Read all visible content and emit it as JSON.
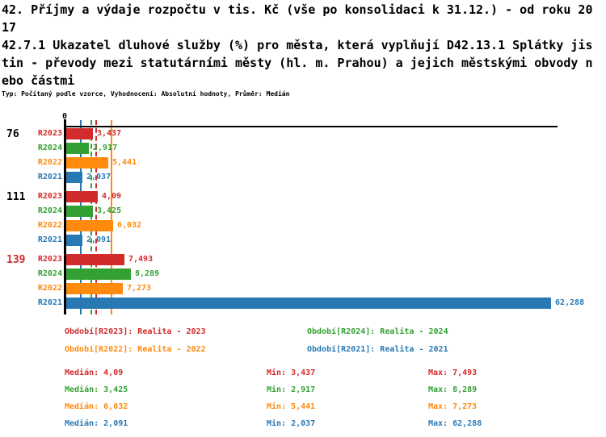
{
  "title": {
    "lines": [
      "42. Příjmy a výdaje rozpočtu v tis. Kč (vše po konsolidaci k 31.12.) - od roku 20",
      "17",
      "42.7.1 Ukazatel dluhové služby (%) pro města, která vyplňují D42.13.1 Splátky jis",
      "tin - převody mezi statutárními městy (hl. m. Prahou) a jejich městskými obvody n",
      "ebo částmi"
    ],
    "meta": "Typ: Počítaný podle vzorce, Vyhodnocení: Absolutní hodnoty, Průměr: Medián"
  },
  "colors": {
    "R2023": "#d22b2b",
    "R2024": "#33a033",
    "R2022": "#ff8a0e",
    "R2021": "#2878b4",
    "axis": "#000000",
    "highlight_group_label": "#d22b2b",
    "normal_group_label": "#000000",
    "background": "#ffffff"
  },
  "chart_data": {
    "type": "bar",
    "orientation": "horizontal",
    "axis_zero_label": "0",
    "xlim": [
      0,
      63.3
    ],
    "grid": false,
    "legend_position": "bottom",
    "series_order": [
      "R2023",
      "R2024",
      "R2022",
      "R2021"
    ],
    "groups": [
      {
        "label": "76",
        "label_color": "#000000",
        "bars": [
          {
            "series": "R2023",
            "value": 3.437,
            "display": "3,437"
          },
          {
            "series": "R2024",
            "value": 2.917,
            "display": "2,917"
          },
          {
            "series": "R2022",
            "value": 5.441,
            "display": "5,441"
          },
          {
            "series": "R2021",
            "value": 2.037,
            "display": "2,037"
          }
        ]
      },
      {
        "label": "111",
        "label_color": "#000000",
        "bars": [
          {
            "series": "R2023",
            "value": 4.09,
            "display": "4,09"
          },
          {
            "series": "R2024",
            "value": 3.425,
            "display": "3,425"
          },
          {
            "series": "R2022",
            "value": 6.032,
            "display": "6,032"
          },
          {
            "series": "R2021",
            "value": 2.091,
            "display": "2,091"
          }
        ]
      },
      {
        "label": "139",
        "label_color": "#d22b2b",
        "bars": [
          {
            "series": "R2023",
            "value": 7.493,
            "display": "7,493"
          },
          {
            "series": "R2024",
            "value": 8.289,
            "display": "8,289"
          },
          {
            "series": "R2022",
            "value": 7.273,
            "display": "7,273"
          },
          {
            "series": "R2021",
            "value": 62.288,
            "display": "62,288"
          }
        ]
      }
    ],
    "median_lines": [
      {
        "series": "R2023",
        "value": 4.09,
        "style": "dashed"
      },
      {
        "series": "R2024",
        "value": 3.425,
        "style": "dashed"
      },
      {
        "series": "R2022",
        "value": 6.032,
        "style": "solid"
      },
      {
        "series": "R2021",
        "value": 2.091,
        "style": "solid"
      }
    ]
  },
  "legend": [
    {
      "series": "R2023",
      "label": "Období[R2023]: Realita - 2023"
    },
    {
      "series": "R2024",
      "label": "Období[R2024]: Realita - 2024"
    },
    {
      "series": "R2022",
      "label": "Období[R2022]: Realita - 2022"
    },
    {
      "series": "R2021",
      "label": "Období[R2021]: Realita - 2021"
    }
  ],
  "stats": {
    "labels": {
      "median": "Medián:",
      "min": "Min:",
      "max": "Max:"
    },
    "rows": [
      {
        "series": "R2023",
        "median": "4,09",
        "min": "3,437",
        "max": "7,493"
      },
      {
        "series": "R2024",
        "median": "3,425",
        "min": "2,917",
        "max": "8,289"
      },
      {
        "series": "R2022",
        "median": "6,032",
        "min": "5,441",
        "max": "7,273"
      },
      {
        "series": "R2021",
        "median": "2,091",
        "min": "2,037",
        "max": "62,288"
      }
    ]
  }
}
